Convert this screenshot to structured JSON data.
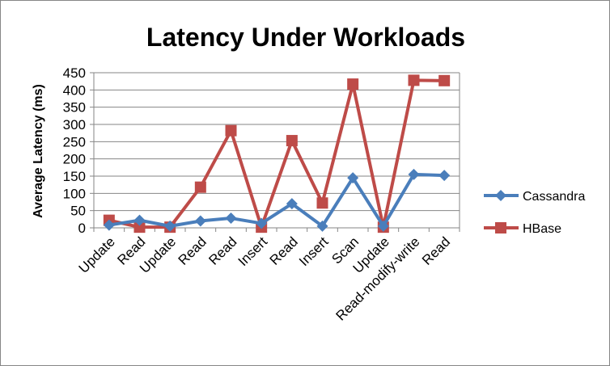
{
  "chart_data": {
    "type": "line",
    "title": "Latency Under Workloads",
    "xlabel": "",
    "ylabel": "Average Latency (ms)",
    "ylim": [
      0,
      450
    ],
    "yticks": [
      0,
      50,
      100,
      150,
      200,
      250,
      300,
      350,
      400,
      450
    ],
    "grid": "horizontal",
    "legend_position": "right",
    "categories": [
      "Update",
      "Read",
      "Update",
      "Read",
      "Read",
      "Insert",
      "Read",
      "Insert",
      "Scan",
      "Update",
      "Read-modify-write",
      "Read"
    ],
    "series": [
      {
        "name": "Cassandra",
        "color": "#4a7ebb",
        "marker": "diamond",
        "values": [
          8,
          22,
          5,
          20,
          28,
          13,
          70,
          5,
          145,
          5,
          155,
          152
        ]
      },
      {
        "name": "HBase",
        "color": "#be4b48",
        "marker": "square",
        "values": [
          22,
          2,
          2,
          118,
          282,
          2,
          253,
          72,
          417,
          2,
          428,
          427
        ]
      }
    ]
  }
}
